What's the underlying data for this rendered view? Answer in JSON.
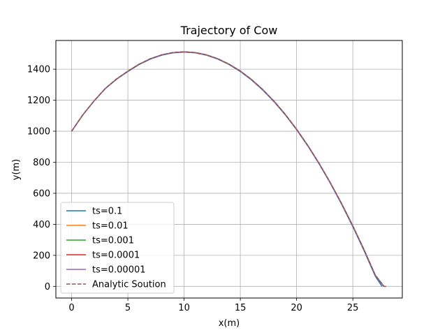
{
  "chart_data": {
    "type": "line",
    "title": "Trajectory of Cow",
    "xlabel": "x(m)",
    "ylabel": "y(m)",
    "xlim": [
      -1.4,
      29.4
    ],
    "ylim": [
      -75,
      1585
    ],
    "xticks": [
      0,
      5,
      10,
      15,
      20,
      25
    ],
    "yticks": [
      0,
      200,
      400,
      600,
      800,
      1000,
      1200,
      1400
    ],
    "grid": true,
    "legend_position": "lower-left",
    "series": [
      {
        "name": "ts=0.1",
        "color": "#1f77b4",
        "dash": "solid",
        "x": [
          0,
          1,
          2,
          3,
          4,
          5,
          6,
          7,
          8,
          9,
          10,
          11,
          12,
          13,
          14,
          15,
          16,
          17,
          18,
          19,
          20,
          21,
          22,
          23,
          24,
          25,
          26,
          27,
          27.6
        ],
        "y": [
          1000,
          1105,
          1195,
          1275,
          1335,
          1385,
          1430,
          1465,
          1490,
          1505,
          1510,
          1505,
          1490,
          1465,
          1430,
          1385,
          1330,
          1265,
          1190,
          1105,
          1010,
          905,
          790,
          665,
          530,
          385,
          230,
          65,
          0
        ]
      },
      {
        "name": "ts=0.01",
        "color": "#ff7f0e",
        "dash": "solid",
        "x": [
          0,
          1,
          2,
          3,
          4,
          5,
          6,
          7,
          8,
          9,
          10,
          11,
          12,
          13,
          14,
          15,
          16,
          17,
          18,
          19,
          20,
          21,
          22,
          23,
          24,
          25,
          26,
          27,
          27.75
        ],
        "y": [
          1000,
          1106,
          1196,
          1276,
          1337,
          1387,
          1432,
          1467,
          1492,
          1507,
          1512,
          1507,
          1492,
          1467,
          1432,
          1388,
          1333,
          1268,
          1193,
          1108,
          1013,
          908,
          793,
          668,
          534,
          390,
          236,
          72,
          0
        ]
      },
      {
        "name": "ts=0.001",
        "color": "#2ca02c",
        "dash": "solid",
        "x": [
          0,
          1,
          2,
          3,
          4,
          5,
          6,
          7,
          8,
          9,
          10,
          11,
          12,
          13,
          14,
          15,
          16,
          17,
          18,
          19,
          20,
          21,
          22,
          23,
          24,
          25,
          26,
          27,
          27.76
        ],
        "y": [
          1000,
          1106,
          1196,
          1276,
          1337,
          1387,
          1432,
          1467,
          1492,
          1507,
          1512,
          1507,
          1492,
          1467,
          1432,
          1388,
          1333,
          1268,
          1193,
          1108,
          1013,
          908,
          793,
          668,
          534,
          390,
          236,
          72,
          0
        ]
      },
      {
        "name": "ts=0.0001",
        "color": "#d62728",
        "dash": "solid",
        "x": [
          0,
          1,
          2,
          3,
          4,
          5,
          6,
          7,
          8,
          9,
          10,
          11,
          12,
          13,
          14,
          15,
          16,
          17,
          18,
          19,
          20,
          21,
          22,
          23,
          24,
          25,
          26,
          27,
          27.77
        ],
        "y": [
          1000,
          1106,
          1196,
          1276,
          1337,
          1387,
          1432,
          1467,
          1492,
          1507,
          1512,
          1507,
          1492,
          1467,
          1432,
          1388,
          1333,
          1268,
          1193,
          1108,
          1013,
          908,
          793,
          668,
          534,
          390,
          236,
          72,
          0
        ]
      },
      {
        "name": "ts=0.00001",
        "color": "#9467bd",
        "dash": "solid",
        "x": [
          0,
          1,
          2,
          3,
          4,
          5,
          6,
          7,
          8,
          9,
          10,
          11,
          12,
          13,
          14,
          15,
          16,
          17,
          18,
          19,
          20,
          21,
          22,
          23,
          24,
          25,
          26,
          27,
          27.77
        ],
        "y": [
          1000,
          1106,
          1196,
          1276,
          1337,
          1387,
          1432,
          1467,
          1492,
          1507,
          1512,
          1507,
          1492,
          1467,
          1432,
          1388,
          1333,
          1268,
          1193,
          1108,
          1013,
          908,
          793,
          668,
          534,
          390,
          236,
          72,
          0
        ]
      },
      {
        "name": "Analytic Soution",
        "color": "#8c564b",
        "dash": "dashed",
        "x": [
          0,
          1,
          2,
          3,
          4,
          5,
          6,
          7,
          8,
          9,
          10,
          11,
          12,
          13,
          14,
          15,
          16,
          17,
          18,
          19,
          20,
          21,
          22,
          23,
          24,
          25,
          26,
          27,
          27.77,
          28.0
        ],
        "y": [
          1000,
          1106,
          1196,
          1276,
          1337,
          1387,
          1432,
          1467,
          1492,
          1507,
          1512,
          1507,
          1492,
          1467,
          1432,
          1388,
          1333,
          1268,
          1193,
          1108,
          1013,
          908,
          793,
          668,
          534,
          390,
          236,
          72,
          0,
          0
        ]
      }
    ]
  }
}
